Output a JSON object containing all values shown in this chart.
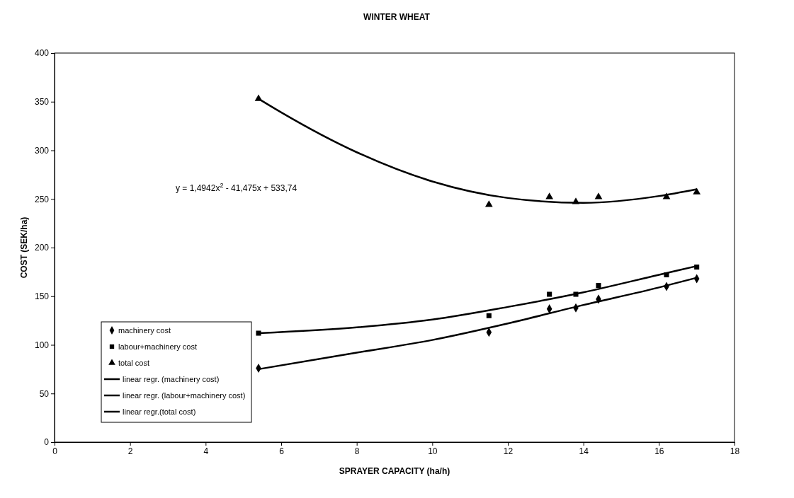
{
  "chart_data": {
    "type": "scatter",
    "title": "WINTER WHEAT",
    "xlabel": "SPRAYER CAPACITY (ha/h)",
    "ylabel": "COST (SEK/ha)",
    "xlim": [
      0,
      18
    ],
    "xticks": [
      0,
      2,
      4,
      6,
      8,
      10,
      12,
      14,
      16,
      18
    ],
    "ylim": [
      0,
      400
    ],
    "yticks": [
      0,
      50,
      100,
      150,
      200,
      250,
      300,
      350,
      400
    ],
    "grid": false,
    "legend": "bottom left",
    "line_style": "solid",
    "annotations": [
      "y = 1,4942x$^{2}$ - 41,475x + 533,74"
    ],
    "series": [
      {
        "name": "machinery cost",
        "marker": "diamond",
        "color": "#000000",
        "x": [
          5.4,
          11.5,
          13.1,
          13.8,
          14.4,
          16.2,
          17.0
        ],
        "values": [
          76,
          113,
          137,
          138,
          147,
          160,
          168
        ]
      },
      {
        "name": "labour+machinery cost",
        "marker": "square",
        "color": "#000000",
        "x": [
          5.4,
          11.5,
          13.1,
          13.8,
          14.4,
          16.2,
          17.0
        ],
        "values": [
          112,
          130,
          152,
          152,
          161,
          172,
          180
        ]
      },
      {
        "name": "total cost",
        "marker": "triangle",
        "color": "#000000",
        "x": [
          5.4,
          11.5,
          13.1,
          13.8,
          14.4,
          16.2,
          17.0
        ],
        "values": [
          353,
          244,
          252,
          247,
          252,
          252,
          257
        ]
      },
      {
        "name": "linear regr. (machinery cost)",
        "type": "line",
        "marker": "none",
        "color": "#000000",
        "x": [
          5.4,
          8,
          10,
          12,
          14,
          16,
          17
        ],
        "values": [
          75,
          92,
          105,
          122,
          141,
          159,
          169
        ]
      },
      {
        "name": "linear regr. (labour+machinery cost)",
        "type": "line",
        "marker": "none",
        "color": "#000000",
        "x": [
          5.4,
          8,
          10,
          12,
          14,
          16,
          17
        ],
        "values": [
          112,
          118,
          126,
          139,
          154,
          172,
          181
        ]
      },
      {
        "name": "linear regr.(total cost)",
        "type": "line",
        "marker": "none",
        "color": "#000000",
        "x": [
          5.4,
          6,
          8,
          10,
          12,
          14,
          16,
          17
        ],
        "values": [
          353,
          339,
          298,
          268,
          251,
          246,
          253,
          260
        ]
      }
    ]
  }
}
